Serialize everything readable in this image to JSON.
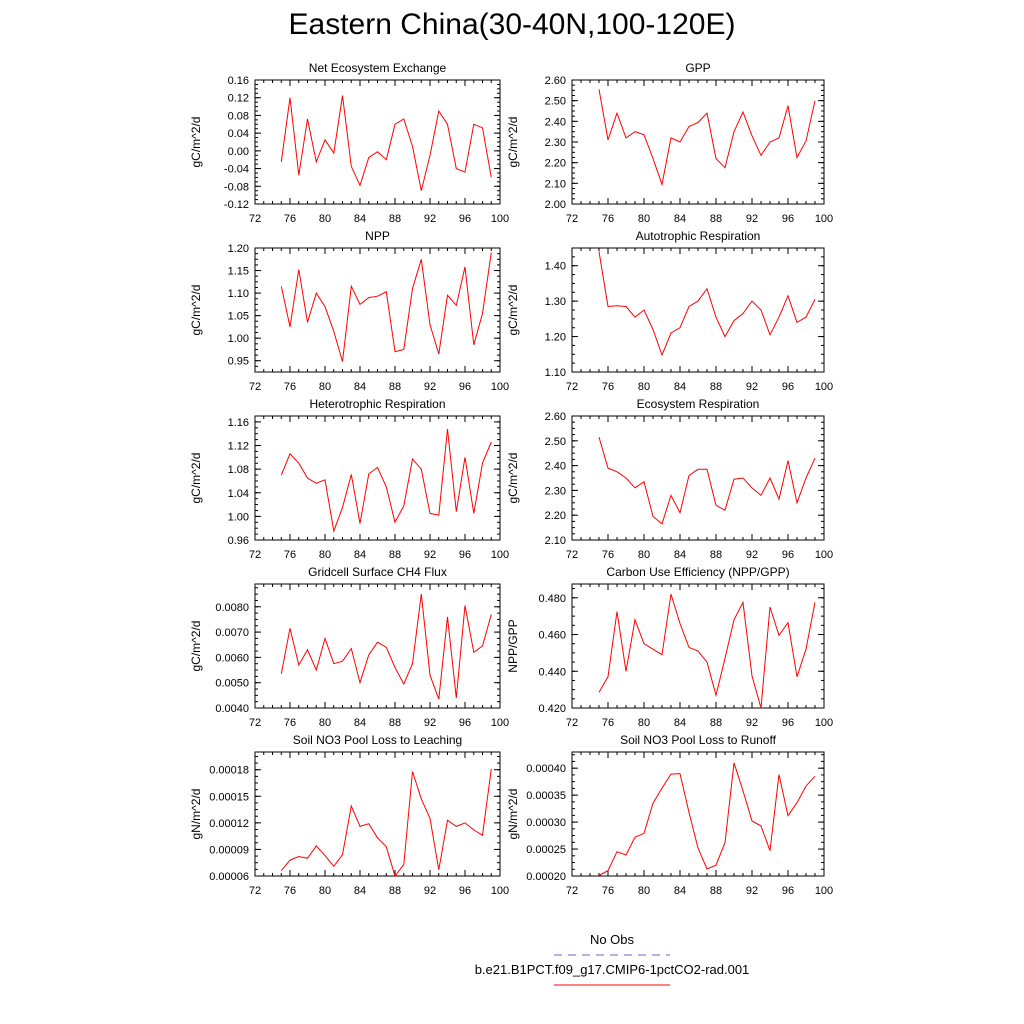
{
  "page": {
    "title": "Eastern China(30-40N,100-120E)"
  },
  "legend": {
    "items": [
      {
        "label": "No Obs",
        "color": "#6666cc",
        "style": "dashed"
      },
      {
        "label": "b.e21.B1PCT.f09_g17.CMIP6-1pctCO2-rad.001",
        "color": "#ff0000",
        "style": "solid"
      }
    ]
  },
  "chart_data": [
    {
      "type": "line",
      "title": "Net Ecosystem Exchange",
      "ylabel": "gC/m^2/d",
      "xlim": [
        72,
        100
      ],
      "xticks": [
        "72",
        "76",
        "80",
        "84",
        "88",
        "92",
        "96",
        "100"
      ],
      "ylim": [
        -0.12,
        0.16
      ],
      "yticks": [
        "-0.12",
        "-0.08",
        "-0.04",
        "0.00",
        "0.04",
        "0.08",
        "0.12",
        "0.16"
      ],
      "x": [
        75,
        76,
        77,
        78,
        79,
        80,
        81,
        82,
        83,
        84,
        85,
        86,
        87,
        88,
        89,
        90,
        91,
        92,
        93,
        94,
        95,
        96,
        97,
        98,
        99
      ],
      "series": [
        {
          "color": "#ff0000",
          "values": [
            -0.025,
            0.12,
            -0.055,
            0.072,
            -0.025,
            0.025,
            -0.005,
            0.125,
            -0.035,
            -0.078,
            -0.015,
            -0.002,
            -0.02,
            0.06,
            0.072,
            0.01,
            -0.09,
            -0.01,
            0.09,
            0.06,
            -0.04,
            -0.048,
            0.06,
            0.052,
            -0.06
          ]
        }
      ]
    },
    {
      "type": "line",
      "title": "GPP",
      "ylabel": "gC/m^2/d",
      "xlim": [
        72,
        100
      ],
      "xticks": [
        "72",
        "76",
        "80",
        "84",
        "88",
        "92",
        "96",
        "100"
      ],
      "ylim": [
        2.0,
        2.6
      ],
      "yticks": [
        "2.00",
        "2.10",
        "2.20",
        "2.30",
        "2.40",
        "2.50",
        "2.60"
      ],
      "x": [
        75,
        76,
        77,
        78,
        79,
        80,
        81,
        82,
        83,
        84,
        85,
        86,
        87,
        88,
        89,
        90,
        91,
        92,
        93,
        94,
        95,
        96,
        97,
        98,
        99
      ],
      "series": [
        {
          "color": "#ff0000",
          "values": [
            2.555,
            2.31,
            2.44,
            2.32,
            2.35,
            2.335,
            2.22,
            2.095,
            2.32,
            2.3,
            2.375,
            2.395,
            2.44,
            2.22,
            2.175,
            2.35,
            2.445,
            2.33,
            2.235,
            2.3,
            2.32,
            2.475,
            2.225,
            2.305,
            2.5
          ]
        }
      ]
    },
    {
      "type": "line",
      "title": "NPP",
      "ylabel": "gC/m^2/d",
      "xlim": [
        72,
        100
      ],
      "xticks": [
        "72",
        "76",
        "80",
        "84",
        "88",
        "92",
        "96",
        "100"
      ],
      "ylim": [
        0.925,
        1.2
      ],
      "yticks": [
        "0.95",
        "1.00",
        "1.05",
        "1.10",
        "1.15",
        "1.20"
      ],
      "x": [
        75,
        76,
        77,
        78,
        79,
        80,
        81,
        82,
        83,
        84,
        85,
        86,
        87,
        88,
        89,
        90,
        91,
        92,
        93,
        94,
        95,
        96,
        97,
        98,
        99
      ],
      "series": [
        {
          "color": "#ff0000",
          "values": [
            1.115,
            1.025,
            1.152,
            1.035,
            1.1,
            1.07,
            1.015,
            0.948,
            1.115,
            1.075,
            1.09,
            1.093,
            1.103,
            0.97,
            0.975,
            1.11,
            1.175,
            1.03,
            0.965,
            1.095,
            1.073,
            1.158,
            0.985,
            1.055,
            1.19
          ]
        }
      ]
    },
    {
      "type": "line",
      "title": "Autotrophic Respiration",
      "ylabel": "gC/m^2/d",
      "xlim": [
        72,
        100
      ],
      "xticks": [
        "72",
        "76",
        "80",
        "84",
        "88",
        "92",
        "96",
        "100"
      ],
      "ylim": [
        1.1,
        1.45
      ],
      "yticks": [
        "1.10",
        "1.20",
        "1.30",
        "1.40"
      ],
      "x": [
        75,
        76,
        77,
        78,
        79,
        80,
        81,
        82,
        83,
        84,
        85,
        86,
        87,
        88,
        89,
        90,
        91,
        92,
        93,
        94,
        95,
        96,
        97,
        98,
        99
      ],
      "series": [
        {
          "color": "#ff0000",
          "values": [
            1.44,
            1.285,
            1.287,
            1.285,
            1.255,
            1.275,
            1.22,
            1.148,
            1.21,
            1.225,
            1.285,
            1.3,
            1.335,
            1.255,
            1.2,
            1.245,
            1.265,
            1.3,
            1.275,
            1.205,
            1.255,
            1.315,
            1.24,
            1.255,
            1.305
          ]
        }
      ]
    },
    {
      "type": "line",
      "title": "Heterotrophic Respiration",
      "ylabel": "gC/m^2/d",
      "xlim": [
        72,
        100
      ],
      "xticks": [
        "72",
        "76",
        "80",
        "84",
        "88",
        "92",
        "96",
        "100"
      ],
      "ylim": [
        0.96,
        1.17
      ],
      "yticks": [
        "0.96",
        "1.00",
        "1.04",
        "1.08",
        "1.12",
        "1.16"
      ],
      "x": [
        75,
        76,
        77,
        78,
        79,
        80,
        81,
        82,
        83,
        84,
        85,
        86,
        87,
        88,
        89,
        90,
        91,
        92,
        93,
        94,
        95,
        96,
        97,
        98,
        99
      ],
      "series": [
        {
          "color": "#ff0000",
          "values": [
            1.07,
            1.106,
            1.09,
            1.065,
            1.056,
            1.062,
            0.975,
            1.015,
            1.071,
            0.988,
            1.072,
            1.083,
            1.05,
            0.99,
            1.018,
            1.097,
            1.08,
            1.005,
            1.002,
            1.148,
            1.008,
            1.1,
            1.005,
            1.09,
            1.126
          ]
        }
      ]
    },
    {
      "type": "line",
      "title": "Ecosystem Respiration",
      "ylabel": "gC/m^2/d",
      "xlim": [
        72,
        100
      ],
      "xticks": [
        "72",
        "76",
        "80",
        "84",
        "88",
        "92",
        "96",
        "100"
      ],
      "ylim": [
        2.1,
        2.6
      ],
      "yticks": [
        "2.10",
        "2.20",
        "2.30",
        "2.40",
        "2.50",
        "2.60"
      ],
      "x": [
        75,
        76,
        77,
        78,
        79,
        80,
        81,
        82,
        83,
        84,
        85,
        86,
        87,
        88,
        89,
        90,
        91,
        92,
        93,
        94,
        95,
        96,
        97,
        98,
        99
      ],
      "series": [
        {
          "color": "#ff0000",
          "values": [
            2.515,
            2.39,
            2.375,
            2.35,
            2.31,
            2.335,
            2.195,
            2.165,
            2.28,
            2.21,
            2.36,
            2.385,
            2.385,
            2.24,
            2.22,
            2.345,
            2.35,
            2.31,
            2.28,
            2.35,
            2.265,
            2.42,
            2.25,
            2.35,
            2.43
          ]
        }
      ]
    },
    {
      "type": "line",
      "title": "Gridcell Surface CH4 Flux",
      "ylabel": "gC/m^2/d",
      "xlim": [
        72,
        100
      ],
      "xticks": [
        "72",
        "76",
        "80",
        "84",
        "88",
        "92",
        "96",
        "100"
      ],
      "ylim": [
        0.004,
        0.0089
      ],
      "yticks": [
        "0.0040",
        "0.0050",
        "0.0060",
        "0.0070",
        "0.0080"
      ],
      "x": [
        75,
        76,
        77,
        78,
        79,
        80,
        81,
        82,
        83,
        84,
        85,
        86,
        87,
        88,
        89,
        90,
        91,
        92,
        93,
        94,
        95,
        96,
        97,
        98,
        99
      ],
      "series": [
        {
          "color": "#ff0000",
          "values": [
            0.00535,
            0.00715,
            0.0057,
            0.0063,
            0.0055,
            0.00675,
            0.00575,
            0.00585,
            0.00635,
            0.005,
            0.0061,
            0.0066,
            0.0064,
            0.0056,
            0.00495,
            0.00575,
            0.0085,
            0.0053,
            0.00435,
            0.0076,
            0.0044,
            0.00805,
            0.0062,
            0.00645,
            0.0077
          ]
        }
      ]
    },
    {
      "type": "line",
      "title": "Carbon Use Efficiency (NPP/GPP)",
      "ylabel": "NPP/GPP",
      "xlim": [
        72,
        100
      ],
      "xticks": [
        "72",
        "76",
        "80",
        "84",
        "88",
        "92",
        "96",
        "100"
      ],
      "ylim": [
        0.42,
        0.4875
      ],
      "yticks": [
        "0.420",
        "0.440",
        "0.460",
        "0.480"
      ],
      "x": [
        75,
        76,
        77,
        78,
        79,
        80,
        81,
        82,
        83,
        84,
        85,
        86,
        87,
        88,
        89,
        90,
        91,
        92,
        93,
        94,
        95,
        96,
        97,
        98,
        99
      ],
      "series": [
        {
          "color": "#ff0000",
          "values": [
            0.4285,
            0.437,
            0.4725,
            0.44,
            0.468,
            0.455,
            0.452,
            0.449,
            0.482,
            0.466,
            0.453,
            0.451,
            0.445,
            0.427,
            0.447,
            0.468,
            0.4775,
            0.4375,
            0.42,
            0.475,
            0.4595,
            0.4665,
            0.437,
            0.452,
            0.4775
          ]
        }
      ]
    },
    {
      "type": "line",
      "title": "Soil NO3 Pool Loss to Leaching",
      "ylabel": "gN/m^2/d",
      "xlim": [
        72,
        100
      ],
      "xticks": [
        "72",
        "76",
        "80",
        "84",
        "88",
        "92",
        "96",
        "100"
      ],
      "ylim": [
        6e-05,
        0.0002
      ],
      "yticks": [
        "0.00006",
        "0.00009",
        "0.00012",
        "0.00015",
        "0.00018"
      ],
      "x": [
        75,
        76,
        77,
        78,
        79,
        80,
        81,
        82,
        83,
        84,
        85,
        86,
        87,
        88,
        89,
        90,
        91,
        92,
        93,
        94,
        95,
        96,
        97,
        98,
        99
      ],
      "series": [
        {
          "color": "#ff0000",
          "values": [
            6.6e-05,
            7.8e-05,
            8.2e-05,
            8e-05,
            9.4e-05,
            8.3e-05,
            7.1e-05,
            8.4e-05,
            0.000139,
            0.000116,
            0.000119,
            0.000103,
            9.3e-05,
            6e-05,
            7.3e-05,
            0.000178,
            0.000147,
            0.000125,
            6.7e-05,
            0.000123,
            0.000116,
            0.00012,
            0.000112,
            0.000106,
            0.000181
          ]
        }
      ]
    },
    {
      "type": "line",
      "title": "Soil NO3 Pool Loss to Runoff",
      "ylabel": "gN/m^2/d",
      "xlim": [
        72,
        100
      ],
      "xticks": [
        "72",
        "76",
        "80",
        "84",
        "88",
        "92",
        "96",
        "100"
      ],
      "ylim": [
        0.0002,
        0.00043
      ],
      "yticks": [
        "0.00020",
        "0.00025",
        "0.00030",
        "0.00035",
        "0.00040"
      ],
      "x": [
        75,
        76,
        77,
        78,
        79,
        80,
        81,
        82,
        83,
        84,
        85,
        86,
        87,
        88,
        89,
        90,
        91,
        92,
        93,
        94,
        95,
        96,
        97,
        98,
        99
      ],
      "series": [
        {
          "color": "#ff0000",
          "values": [
            0.000201,
            0.00021,
            0.000245,
            0.000239,
            0.000272,
            0.000279,
            0.000335,
            0.000363,
            0.000389,
            0.00039,
            0.000318,
            0.000252,
            0.000213,
            0.00022,
            0.000262,
            0.00041,
            0.000358,
            0.000302,
            0.000293,
            0.000247,
            0.000388,
            0.000312,
            0.000336,
            0.000367,
            0.000385
          ]
        }
      ]
    }
  ]
}
